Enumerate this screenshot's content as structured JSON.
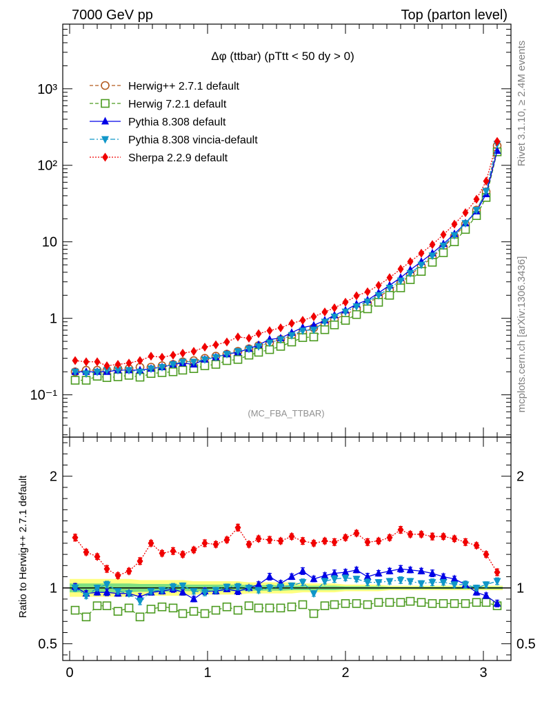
{
  "header": {
    "left": "7000 GeV pp",
    "right": "Top (parton level)"
  },
  "side_labels": {
    "rivet": "Rivet 3.1.10, ≥ 2.4M events",
    "mcplots": "mcplots.cern.ch [arXiv:1306.3436]"
  },
  "watermark": "(MC_FBA_TTBAR)",
  "colors": {
    "herwigpp": "#b35a1f",
    "herwig7": "#4a9a1e",
    "pythia": "#0000e6",
    "vincia": "#0f96c8",
    "sherpa": "#f00000",
    "band_yellow": "#ffff80",
    "band_green": "#80e080"
  },
  "chart_data": [
    {
      "type": "line",
      "title": "Δφ (ttbar) (pTtt < 50 dy > 0)",
      "xlabel": "",
      "ylabel": "",
      "yscale": "log",
      "xlim": [
        -0.05,
        3.2
      ],
      "ylim": [
        0.028,
        7000
      ],
      "y_ticks": [
        "10⁻¹",
        "1",
        "10",
        "10²",
        "10³"
      ],
      "x": [
        0.04,
        0.12,
        0.2,
        0.27,
        0.35,
        0.43,
        0.51,
        0.59,
        0.67,
        0.75,
        0.82,
        0.9,
        0.98,
        1.06,
        1.14,
        1.22,
        1.3,
        1.37,
        1.45,
        1.53,
        1.61,
        1.69,
        1.77,
        1.85,
        1.92,
        2.0,
        2.08,
        2.16,
        2.24,
        2.32,
        2.4,
        2.47,
        2.55,
        2.63,
        2.71,
        2.79,
        2.87,
        2.95,
        3.02,
        3.1
      ],
      "series": [
        {
          "name": "Herwig++ 2.7.1 default",
          "marker": "open-circle",
          "line": "dashed",
          "values": [
            0.2,
            0.21,
            0.21,
            0.21,
            0.22,
            0.22,
            0.23,
            0.23,
            0.24,
            0.25,
            0.27,
            0.28,
            0.3,
            0.32,
            0.34,
            0.37,
            0.4,
            0.44,
            0.48,
            0.53,
            0.59,
            0.66,
            0.75,
            0.85,
            0.97,
            1.12,
            1.32,
            1.57,
            1.9,
            2.35,
            2.9,
            3.7,
            4.8,
            6.3,
            8.5,
            11.8,
            17.0,
            26.0,
            45.0,
            180.0
          ]
        },
        {
          "name": "Herwig 7.2.1 default",
          "marker": "open-square",
          "line": "dashed",
          "values": [
            0.155,
            0.155,
            0.175,
            0.168,
            0.172,
            0.18,
            0.17,
            0.19,
            0.195,
            0.2,
            0.21,
            0.22,
            0.24,
            0.25,
            0.28,
            0.29,
            0.33,
            0.36,
            0.39,
            0.43,
            0.49,
            0.56,
            0.57,
            0.71,
            0.82,
            0.94,
            1.12,
            1.33,
            1.62,
            2.0,
            2.5,
            3.2,
            4.1,
            5.4,
            7.2,
            10.0,
            14.5,
            22.0,
            38.0,
            150.0
          ]
        },
        {
          "name": "Pythia 8.308 default",
          "marker": "filled-triangle-up",
          "line": "solid",
          "values": [
            0.2,
            0.2,
            0.2,
            0.2,
            0.21,
            0.21,
            0.21,
            0.22,
            0.23,
            0.25,
            0.26,
            0.25,
            0.29,
            0.31,
            0.34,
            0.36,
            0.4,
            0.45,
            0.53,
            0.55,
            0.65,
            0.76,
            0.81,
            0.94,
            1.1,
            1.27,
            1.53,
            1.73,
            2.15,
            2.7,
            3.4,
            4.3,
            5.5,
            7.1,
            9.4,
            12.7,
            17.5,
            25.0,
            42.0,
            155.0
          ]
        },
        {
          "name": "Pythia 8.308 vincia-default",
          "marker": "filled-triangle-down",
          "line": "dashdot",
          "values": [
            0.2,
            0.19,
            0.2,
            0.21,
            0.21,
            0.21,
            0.2,
            0.22,
            0.23,
            0.25,
            0.27,
            0.27,
            0.29,
            0.31,
            0.34,
            0.37,
            0.4,
            0.43,
            0.48,
            0.53,
            0.6,
            0.69,
            0.71,
            0.9,
            1.05,
            1.22,
            1.43,
            1.65,
            2.0,
            2.5,
            3.1,
            3.9,
            5.0,
            6.6,
            8.9,
            12.2,
            17.5,
            26.0,
            46.0,
            190.0
          ]
        },
        {
          "name": "Sherpa 2.2.9 default",
          "marker": "filled-diamond",
          "line": "dotted",
          "values": [
            0.28,
            0.27,
            0.27,
            0.24,
            0.25,
            0.26,
            0.28,
            0.32,
            0.31,
            0.33,
            0.35,
            0.37,
            0.42,
            0.45,
            0.49,
            0.57,
            0.55,
            0.63,
            0.69,
            0.75,
            0.86,
            0.94,
            1.05,
            1.21,
            1.37,
            1.62,
            1.97,
            2.22,
            2.7,
            3.4,
            4.4,
            5.5,
            7.1,
            9.2,
            12.4,
            17.0,
            24.0,
            36.0,
            62.0,
            205.0
          ]
        }
      ]
    },
    {
      "type": "line",
      "title": "",
      "xlabel": "",
      "ylabel": "Ratio to Herwig++ 2.7.1 default",
      "yscale": "linear",
      "xlim": [
        -0.05,
        3.2
      ],
      "ylim": [
        0.35,
        2.35
      ],
      "x_ticks": [
        "0",
        "1",
        "2",
        "3"
      ],
      "y_ticks": [
        "0.5",
        "1",
        "2"
      ],
      "x": [
        0.04,
        0.12,
        0.2,
        0.27,
        0.35,
        0.43,
        0.51,
        0.59,
        0.67,
        0.75,
        0.82,
        0.9,
        0.98,
        1.06,
        1.14,
        1.22,
        1.3,
        1.37,
        1.45,
        1.53,
        1.61,
        1.69,
        1.77,
        1.85,
        1.92,
        2.0,
        2.08,
        2.16,
        2.24,
        2.32,
        2.4,
        2.47,
        2.55,
        2.63,
        2.71,
        2.79,
        2.87,
        2.95,
        3.02,
        3.1
      ],
      "band_yellow_halfwidth": [
        0.08,
        0.08,
        0.08,
        0.08,
        0.08,
        0.08,
        0.07,
        0.07,
        0.07,
        0.07,
        0.07,
        0.06,
        0.06,
        0.06,
        0.06,
        0.06,
        0.05,
        0.05,
        0.05,
        0.05,
        0.05,
        0.04,
        0.04,
        0.04,
        0.04,
        0.03,
        0.03,
        0.03,
        0.03,
        0.02,
        0.02,
        0.02,
        0.02,
        0.02,
        0.02,
        0.02,
        0.02,
        0.02,
        0.02,
        0.02
      ],
      "band_green_halfwidth": [
        0.04,
        0.04,
        0.04,
        0.04,
        0.04,
        0.04,
        0.035,
        0.035,
        0.035,
        0.035,
        0.03,
        0.03,
        0.03,
        0.03,
        0.03,
        0.03,
        0.025,
        0.025,
        0.025,
        0.025,
        0.02,
        0.02,
        0.02,
        0.02,
        0.02,
        0.015,
        0.015,
        0.015,
        0.015,
        0.01,
        0.01,
        0.01,
        0.01,
        0.01,
        0.01,
        0.01,
        0.01,
        0.01,
        0.01,
        0.01
      ],
      "series": [
        {
          "name": "Herwig 7.2.1 default",
          "marker": "open-square",
          "line": "dashed",
          "values": [
            0.8,
            0.74,
            0.84,
            0.84,
            0.79,
            0.82,
            0.74,
            0.81,
            0.83,
            0.82,
            0.77,
            0.79,
            0.77,
            0.8,
            0.83,
            0.8,
            0.84,
            0.82,
            0.82,
            0.82,
            0.83,
            0.85,
            0.77,
            0.84,
            0.85,
            0.86,
            0.86,
            0.85,
            0.87,
            0.87,
            0.87,
            0.88,
            0.87,
            0.86,
            0.86,
            0.86,
            0.86,
            0.87,
            0.87,
            0.84
          ]
        },
        {
          "name": "Pythia 8.308 default",
          "marker": "filled-triangle-up",
          "line": "solid",
          "values": [
            1.01,
            0.95,
            0.96,
            0.96,
            0.95,
            0.95,
            0.92,
            0.96,
            0.97,
            0.99,
            0.96,
            0.9,
            0.97,
            0.97,
            0.99,
            0.97,
            1.0,
            1.03,
            1.1,
            1.04,
            1.1,
            1.15,
            1.08,
            1.11,
            1.13,
            1.14,
            1.16,
            1.1,
            1.13,
            1.15,
            1.17,
            1.16,
            1.15,
            1.13,
            1.1,
            1.08,
            1.03,
            0.96,
            0.93,
            0.86
          ]
        },
        {
          "name": "Pythia 8.308 vincia-default",
          "marker": "filled-triangle-down",
          "line": "dashdot",
          "values": [
            1.0,
            0.93,
            1.0,
            1.03,
            0.97,
            0.95,
            0.88,
            0.97,
            0.98,
            1.01,
            1.02,
            0.97,
            0.96,
            0.98,
            1.01,
            1.01,
            1.0,
            0.98,
            1.0,
            1.01,
            1.02,
            1.05,
            0.95,
            1.06,
            1.08,
            1.09,
            1.08,
            1.05,
            1.05,
            1.06,
            1.07,
            1.06,
            1.04,
            1.05,
            1.05,
            1.03,
            1.03,
            1.0,
            1.03,
            1.06
          ]
        },
        {
          "name": "Sherpa 2.2.9 default",
          "marker": "filled-diamond",
          "line": "dotted",
          "values": [
            1.45,
            1.32,
            1.28,
            1.17,
            1.11,
            1.15,
            1.24,
            1.4,
            1.31,
            1.33,
            1.3,
            1.34,
            1.4,
            1.39,
            1.43,
            1.54,
            1.39,
            1.44,
            1.43,
            1.42,
            1.46,
            1.42,
            1.4,
            1.42,
            1.41,
            1.45,
            1.49,
            1.41,
            1.42,
            1.45,
            1.52,
            1.48,
            1.48,
            1.46,
            1.46,
            1.44,
            1.41,
            1.38,
            1.3,
            1.14
          ]
        }
      ]
    }
  ]
}
